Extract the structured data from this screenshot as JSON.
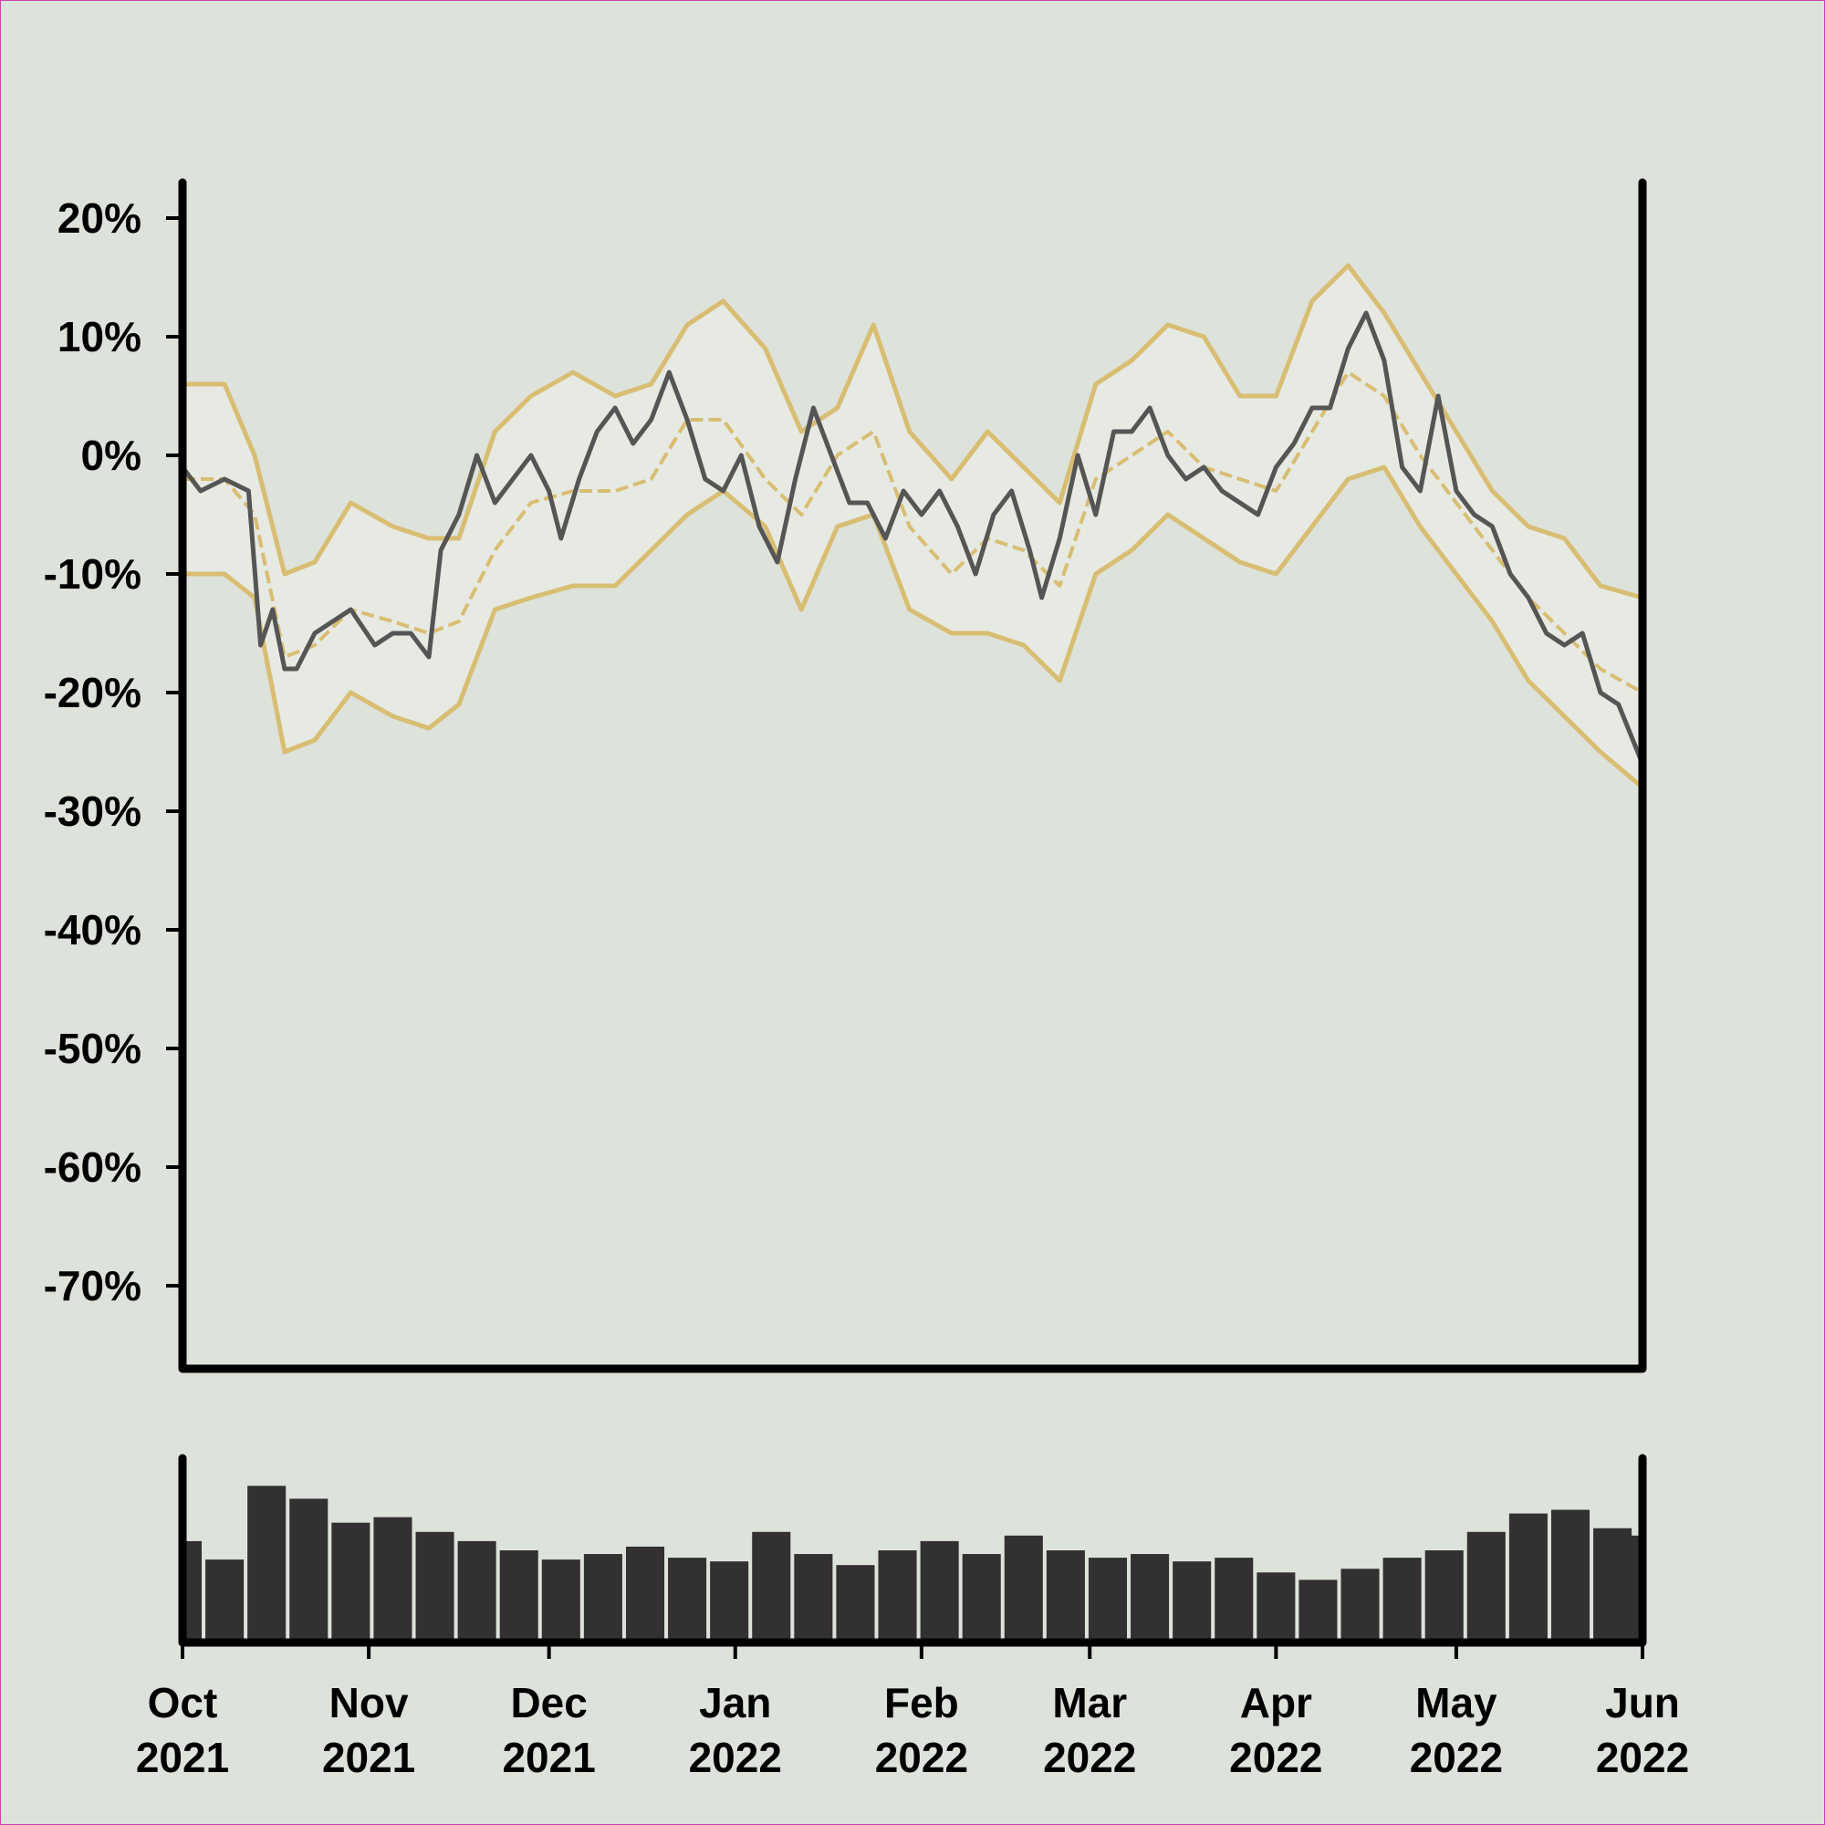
{
  "chart_data": {
    "type": "line",
    "title": "",
    "xlabel": "",
    "ylabel": "",
    "ylim": [
      -77,
      23
    ],
    "y_ticks": [
      20,
      10,
      0,
      -10,
      -20,
      -30,
      -40,
      -50,
      -60,
      -70
    ],
    "y_tick_labels": [
      "20%",
      "10%",
      "0%",
      "-10%",
      "-20%",
      "-30%",
      "-40%",
      "-50%",
      "-60%",
      "-70%"
    ],
    "x_range": [
      "2021-10-01",
      "2022-06-01"
    ],
    "x_ticks": [
      {
        "date": "2021-10-01",
        "month": "Oct",
        "year": "2021"
      },
      {
        "date": "2021-11-01",
        "month": "Nov",
        "year": "2021"
      },
      {
        "date": "2021-12-01",
        "month": "Dec",
        "year": "2021"
      },
      {
        "date": "2022-01-01",
        "month": "Jan",
        "year": "2022"
      },
      {
        "date": "2022-02-01",
        "month": "Feb",
        "year": "2022"
      },
      {
        "date": "2022-03-01",
        "month": "Mar",
        "year": "2022"
      },
      {
        "date": "2022-04-01",
        "month": "Apr",
        "year": "2022"
      },
      {
        "date": "2022-05-01",
        "month": "May",
        "year": "2022"
      },
      {
        "date": "2022-06-01",
        "month": "Jun",
        "year": "2022"
      }
    ],
    "grid": false,
    "colors": {
      "background": "#dde2db",
      "band_fill": "#e6eae3",
      "band_line": "#d9bd72",
      "price_line": "#555555",
      "volume_bars": "#333031",
      "axes": "#000000"
    },
    "series": [
      {
        "role": "price",
        "x": [
          "2021-10-01",
          "2021-10-04",
          "2021-10-08",
          "2021-10-12",
          "2021-10-14",
          "2021-10-16",
          "2021-10-18",
          "2021-10-20",
          "2021-10-23",
          "2021-10-26",
          "2021-10-29",
          "2021-11-02",
          "2021-11-05",
          "2021-11-08",
          "2021-11-11",
          "2021-11-13",
          "2021-11-16",
          "2021-11-19",
          "2021-11-22",
          "2021-11-25",
          "2021-11-28",
          "2021-12-01",
          "2021-12-03",
          "2021-12-06",
          "2021-12-09",
          "2021-12-12",
          "2021-12-15",
          "2021-12-18",
          "2021-12-21",
          "2021-12-24",
          "2021-12-27",
          "2021-12-30",
          "2022-01-02",
          "2022-01-05",
          "2022-01-08",
          "2022-01-11",
          "2022-01-14",
          "2022-01-17",
          "2022-01-20",
          "2022-01-23",
          "2022-01-26",
          "2022-01-29",
          "2022-02-01",
          "2022-02-04",
          "2022-02-07",
          "2022-02-10",
          "2022-02-13",
          "2022-02-16",
          "2022-02-19",
          "2022-02-21",
          "2022-02-24",
          "2022-02-27",
          "2022-03-02",
          "2022-03-05",
          "2022-03-08",
          "2022-03-11",
          "2022-03-14",
          "2022-03-17",
          "2022-03-20",
          "2022-03-23",
          "2022-03-26",
          "2022-03-29",
          "2022-04-01",
          "2022-04-04",
          "2022-04-07",
          "2022-04-10",
          "2022-04-13",
          "2022-04-16",
          "2022-04-19",
          "2022-04-22",
          "2022-04-25",
          "2022-04-28",
          "2022-05-01",
          "2022-05-04",
          "2022-05-07",
          "2022-05-10",
          "2022-05-13",
          "2022-05-16",
          "2022-05-19",
          "2022-05-22",
          "2022-05-25",
          "2022-05-28",
          "2022-06-01"
        ],
        "values": [
          -1,
          -3,
          -2,
          -3,
          -16,
          -13,
          -18,
          -18,
          -15,
          -14,
          -13,
          -16,
          -15,
          -15,
          -17,
          -8,
          -5,
          0,
          -4,
          -2,
          0,
          -3,
          -7,
          -2,
          2,
          4,
          1,
          3,
          7,
          3,
          -2,
          -3,
          0,
          -6,
          -9,
          -2,
          4,
          0,
          -4,
          -4,
          -7,
          -3,
          -5,
          -3,
          -6,
          -10,
          -5,
          -3,
          -8,
          -12,
          -7,
          0,
          -5,
          2,
          2,
          4,
          0,
          -2,
          -1,
          -3,
          -4,
          -5,
          -1,
          1,
          4,
          4,
          9,
          12,
          8,
          -1,
          -3,
          5,
          -3,
          -5,
          -6,
          -10,
          -12,
          -15,
          -16,
          -15,
          -20,
          -21,
          -26
        ]
      },
      {
        "role": "band-middle",
        "x": [
          "2021-10-01",
          "2021-10-08",
          "2021-10-13",
          "2021-10-18",
          "2021-10-23",
          "2021-10-29",
          "2021-11-05",
          "2021-11-11",
          "2021-11-16",
          "2021-11-22",
          "2021-11-28",
          "2021-12-05",
          "2021-12-12",
          "2021-12-18",
          "2021-12-24",
          "2021-12-30",
          "2022-01-06",
          "2022-01-12",
          "2022-01-18",
          "2022-01-24",
          "2022-01-30",
          "2022-02-06",
          "2022-02-12",
          "2022-02-18",
          "2022-02-24",
          "2022-03-02",
          "2022-03-08",
          "2022-03-14",
          "2022-03-20",
          "2022-03-26",
          "2022-04-01",
          "2022-04-07",
          "2022-04-13",
          "2022-04-19",
          "2022-04-25",
          "2022-05-01",
          "2022-05-07",
          "2022-05-13",
          "2022-05-19",
          "2022-05-25",
          "2022-06-01"
        ],
        "values": [
          -2,
          -2,
          -5,
          -17,
          -16,
          -13,
          -14,
          -15,
          -14,
          -8,
          -4,
          -3,
          -3,
          -2,
          3,
          3,
          -2,
          -5,
          0,
          2,
          -6,
          -10,
          -7,
          -8,
          -11,
          -2,
          0,
          2,
          -1,
          -2,
          -3,
          2,
          7,
          5,
          0,
          -4,
          -8,
          -12,
          -15,
          -18,
          -20
        ]
      },
      {
        "role": "band-upper",
        "x": [
          "2021-10-01",
          "2021-10-08",
          "2021-10-13",
          "2021-10-18",
          "2021-10-23",
          "2021-10-29",
          "2021-11-05",
          "2021-11-11",
          "2021-11-16",
          "2021-11-22",
          "2021-11-28",
          "2021-12-05",
          "2021-12-12",
          "2021-12-18",
          "2021-12-24",
          "2021-12-30",
          "2022-01-06",
          "2022-01-12",
          "2022-01-18",
          "2022-01-24",
          "2022-01-30",
          "2022-02-06",
          "2022-02-12",
          "2022-02-18",
          "2022-02-24",
          "2022-03-02",
          "2022-03-08",
          "2022-03-14",
          "2022-03-20",
          "2022-03-26",
          "2022-04-01",
          "2022-04-07",
          "2022-04-13",
          "2022-04-19",
          "2022-04-25",
          "2022-05-01",
          "2022-05-07",
          "2022-05-13",
          "2022-05-19",
          "2022-05-25",
          "2022-06-01"
        ],
        "values": [
          6,
          6,
          0,
          -10,
          -9,
          -4,
          -6,
          -7,
          -7,
          2,
          5,
          7,
          5,
          6,
          11,
          13,
          9,
          2,
          4,
          11,
          2,
          -2,
          2,
          -1,
          -4,
          6,
          8,
          11,
          10,
          5,
          5,
          13,
          16,
          12,
          7,
          2,
          -3,
          -6,
          -7,
          -11,
          -12
        ]
      },
      {
        "role": "band-lower",
        "x": [
          "2021-10-01",
          "2021-10-08",
          "2021-10-13",
          "2021-10-18",
          "2021-10-23",
          "2021-10-29",
          "2021-11-05",
          "2021-11-11",
          "2021-11-16",
          "2021-11-22",
          "2021-11-28",
          "2021-12-05",
          "2021-12-12",
          "2021-12-18",
          "2021-12-24",
          "2021-12-30",
          "2022-01-06",
          "2022-01-12",
          "2022-01-18",
          "2022-01-24",
          "2022-01-30",
          "2022-02-06",
          "2022-02-12",
          "2022-02-18",
          "2022-02-24",
          "2022-03-02",
          "2022-03-08",
          "2022-03-14",
          "2022-03-20",
          "2022-03-26",
          "2022-04-01",
          "2022-04-07",
          "2022-04-13",
          "2022-04-19",
          "2022-04-25",
          "2022-05-01",
          "2022-05-07",
          "2022-05-13",
          "2022-05-19",
          "2022-05-25",
          "2022-06-01"
        ],
        "values": [
          -10,
          -10,
          -12,
          -25,
          -24,
          -20,
          -22,
          -23,
          -21,
          -13,
          -12,
          -11,
          -11,
          -8,
          -5,
          -3,
          -6,
          -13,
          -6,
          -5,
          -13,
          -15,
          -15,
          -16,
          -19,
          -10,
          -8,
          -5,
          -7,
          -9,
          -10,
          -6,
          -2,
          -1,
          -6,
          -10,
          -14,
          -19,
          -22,
          -25,
          -28
        ]
      },
      {
        "role": "volume",
        "x": [
          "2021-10-01",
          "2021-10-08",
          "2021-10-15",
          "2021-10-22",
          "2021-10-29",
          "2021-11-05",
          "2021-11-12",
          "2021-11-19",
          "2021-11-26",
          "2021-12-03",
          "2021-12-10",
          "2021-12-17",
          "2021-12-24",
          "2021-12-31",
          "2022-01-07",
          "2022-01-14",
          "2022-01-21",
          "2022-01-28",
          "2022-02-04",
          "2022-02-11",
          "2022-02-18",
          "2022-02-25",
          "2022-03-04",
          "2022-03-11",
          "2022-03-18",
          "2022-03-25",
          "2022-04-01",
          "2022-04-08",
          "2022-04-15",
          "2022-04-22",
          "2022-04-29",
          "2022-05-06",
          "2022-05-13",
          "2022-05-20",
          "2022-05-27",
          "2022-06-01"
        ],
        "values": [
          0.55,
          0.45,
          0.85,
          0.78,
          0.65,
          0.68,
          0.6,
          0.55,
          0.5,
          0.45,
          0.48,
          0.52,
          0.46,
          0.44,
          0.6,
          0.48,
          0.42,
          0.5,
          0.55,
          0.48,
          0.58,
          0.5,
          0.46,
          0.48,
          0.44,
          0.46,
          0.38,
          0.34,
          0.4,
          0.46,
          0.5,
          0.6,
          0.7,
          0.72,
          0.62,
          0.58
        ]
      }
    ]
  }
}
